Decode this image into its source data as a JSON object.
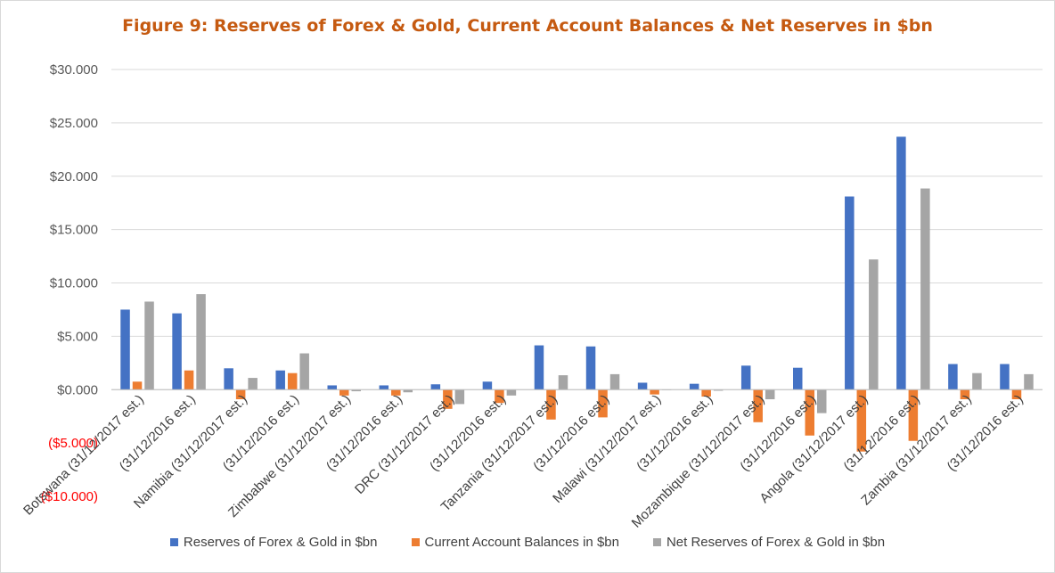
{
  "chart_data": {
    "type": "bar",
    "title": "Figure 9:  Reserves of Forex & Gold, Current Account  Balances & Net Reserves in $bn",
    "xlabel": "",
    "ylabel": "",
    "ylim": [
      -10000,
      30000
    ],
    "yticks": [
      30000,
      25000,
      20000,
      15000,
      10000,
      5000,
      0,
      -5000,
      -10000
    ],
    "ytick_labels": [
      "$30.000",
      "$25.000",
      "$20.000",
      "$15.000",
      "$10.000",
      "$5.000",
      "$0.000",
      "($5.000)",
      "($10.000)"
    ],
    "negative_tick_color": "#ff0000",
    "grid": true,
    "legend_position": "bottom",
    "categories": [
      "Botswana (31/12/2017 est.)",
      "(31/12/2016 est.)",
      "Namibia  (31/12/2017 est.)",
      "(31/12/2016 est.)",
      "Zimbabwe (31/12/2017 est.)",
      "(31/12/2016 est.)",
      "DRC (31/12/2017 est.)",
      "(31/12/2016 est.)",
      "Tanzania (31/12/2017 est.)",
      "(31/12/2016 est.)",
      "Malawi (31/12/2017 est.)",
      "(31/12/2016 est.)",
      "Mozambique (31/12/2017 est.)",
      "(31/12/2016 est.)",
      "Angola (31/12/2017 est.)",
      "(31/12/2016 est.)",
      "Zambia (31/12/2017 est.)",
      "(31/12/2016 est.)"
    ],
    "series": [
      {
        "name": "Reserves of Forex & Gold in $bn",
        "color": "#4472c4",
        "values": [
          7500,
          7150,
          2000,
          1800,
          400,
          400,
          500,
          750,
          4150,
          4050,
          650,
          550,
          2250,
          2050,
          18100,
          23700,
          2400,
          2400
        ]
      },
      {
        "name": "Current Account Balances in $bn",
        "color": "#ed7d31",
        "values": [
          750,
          1800,
          -900,
          1550,
          -550,
          -550,
          -1800,
          -1250,
          -2800,
          -2600,
          -450,
          -650,
          -3050,
          -4300,
          -5800,
          -4800,
          -900,
          -900
        ]
      },
      {
        "name": "Net Reserves of Forex & Gold in $bn",
        "color": "#a5a5a5",
        "values": [
          8250,
          8950,
          1100,
          3400,
          -150,
          -250,
          -1350,
          -550,
          1350,
          1450,
          -50,
          -100,
          -900,
          -2200,
          12200,
          18850,
          1550,
          1450
        ]
      }
    ]
  }
}
